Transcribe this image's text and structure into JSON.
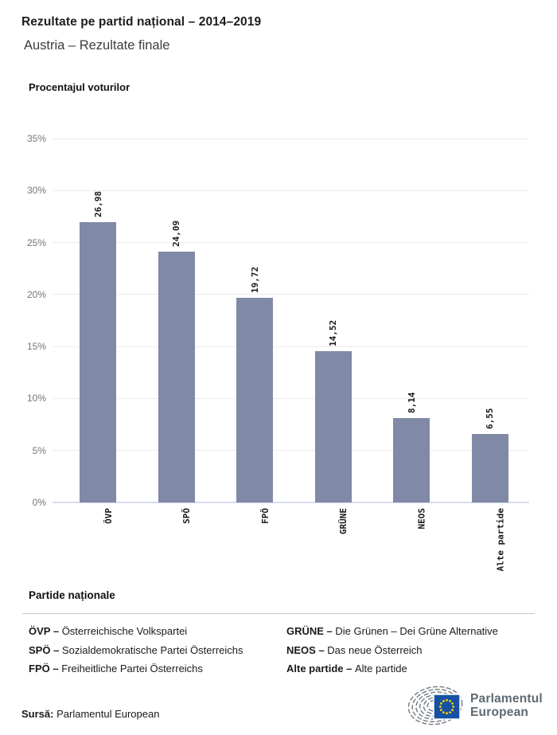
{
  "header": {
    "title": "Rezultate pe partid național – 2014–2019",
    "subtitle": "Austria – Rezultate finale"
  },
  "chart_data": {
    "type": "bar",
    "title": "Procentajul voturilor",
    "categories": [
      "ÖVP",
      "SPÖ",
      "FPÖ",
      "GRÜNE",
      "NEOS",
      "Alte partide"
    ],
    "values": [
      26.98,
      24.09,
      19.72,
      14.52,
      8.14,
      6.55
    ],
    "value_labels": [
      "26,98",
      "24,09",
      "19,72",
      "14,52",
      "8,14",
      "6,55"
    ],
    "ylabel": "Procentajul voturilor",
    "ylim": [
      0,
      35
    ],
    "ytick_step": 5,
    "ytick_suffix": "%",
    "grid": true,
    "legend_position": "none"
  },
  "colors": {
    "bar": "#8089A6",
    "gridline": "#ececec",
    "baseline": "#d8dcf0",
    "tick_text": "#757575",
    "flag_blue": "#1651A3",
    "star_yellow": "#FFD000",
    "hemicycle_gray": "#7b828a",
    "logo_text": "#5d6a73"
  },
  "legend": {
    "title": "Partide naționale",
    "columns": [
      [
        {
          "abbr": "ÖVP",
          "name": "Österreichische Volkspartei"
        },
        {
          "abbr": "SPÖ",
          "name": "Sozialdemokratische Partei Österreichs"
        },
        {
          "abbr": "FPÖ",
          "name": "Freiheitliche Partei Österreichs"
        }
      ],
      [
        {
          "abbr": "GRÜNE",
          "name": "Die Grünen – Dei Grüne Alternative"
        },
        {
          "abbr": "NEOS",
          "name": "Das neue Österreich"
        },
        {
          "abbr": "Alte partide",
          "name": "Alte partide"
        }
      ]
    ]
  },
  "source": {
    "label": "Sursă:",
    "text": "Parlamentul European"
  },
  "logo": {
    "line1": "Parlamentul",
    "line2": "European"
  }
}
